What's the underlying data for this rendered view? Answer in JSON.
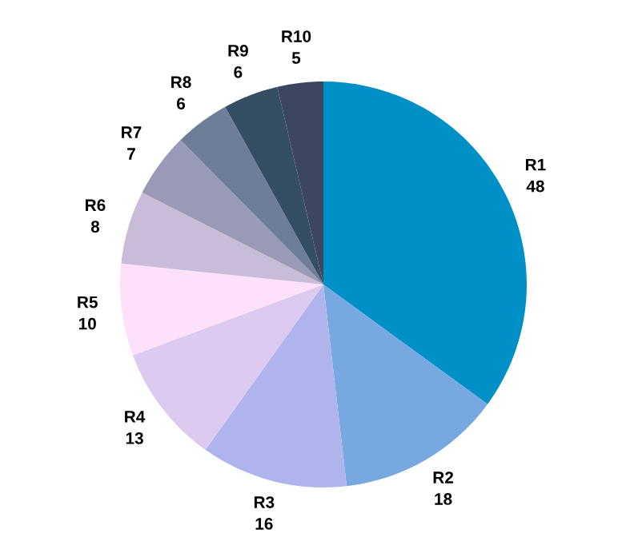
{
  "chart_data": {
    "type": "pie",
    "categories": [
      "R1",
      "R2",
      "R3",
      "R4",
      "R5",
      "R6",
      "R7",
      "R8",
      "R9",
      "R10"
    ],
    "values": [
      48,
      18,
      16,
      13,
      10,
      8,
      7,
      6,
      6,
      5
    ],
    "colors": [
      "#0090c8",
      "#78a8e0",
      "#b0b4ec",
      "#dccaf0",
      "#fde0fa",
      "#c8bcd8",
      "#9a9ab8",
      "#6e7e98",
      "#344e64",
      "#3c4660"
    ],
    "data_labels": true,
    "legend": false
  }
}
